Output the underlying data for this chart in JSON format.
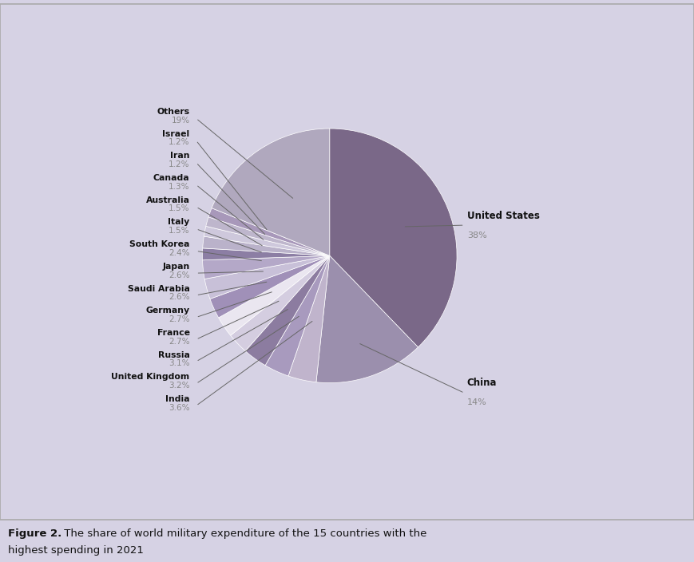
{
  "countries": [
    "United States",
    "China",
    "India",
    "United Kingdom",
    "Russia",
    "France",
    "Germany",
    "Saudi Arabia",
    "Japan",
    "South Korea",
    "Italy",
    "Australia",
    "Canada",
    "Iran",
    "Israel",
    "Others"
  ],
  "percentages": [
    38,
    14,
    3.6,
    3.2,
    3.1,
    2.7,
    2.7,
    2.6,
    2.6,
    2.4,
    1.5,
    1.5,
    1.3,
    1.2,
    1.2,
    19
  ],
  "colors": [
    "#7A6888",
    "#9B8FAD",
    "#C0B4CC",
    "#A89ABE",
    "#8C7CA0",
    "#D4CDE0",
    "#EAE6F0",
    "#A090B8",
    "#C8C0D8",
    "#B4A8C8",
    "#8C7EA4",
    "#BAB2CA",
    "#CEC8DC",
    "#BEB6CC",
    "#A898BA",
    "#B0A8BE"
  ],
  "background_color": "#D6D2E4",
  "label_color_name": "#111111",
  "label_color_pct": "#888888",
  "line_color": "#666666",
  "caption_bold": "Figure 2.",
  "caption_rest_line1": " The share of world military expenditure of the 15 countries with the",
  "caption_line2": "highest spending in 2021",
  "left_labels": [
    {
      "name": "India",
      "pct": "3.6%"
    },
    {
      "name": "United Kingdom",
      "pct": "3.2%"
    },
    {
      "name": "Russia",
      "pct": "3.1%"
    },
    {
      "name": "France",
      "pct": "2.7%"
    },
    {
      "name": "Germany",
      "pct": "2.7%"
    },
    {
      "name": "Saudi Arabia",
      "pct": "2.6%"
    },
    {
      "name": "Japan",
      "pct": "2.6%"
    },
    {
      "name": "South Korea",
      "pct": "2.4%"
    },
    {
      "name": "Italy",
      "pct": "1.5%"
    },
    {
      "name": "Australia",
      "pct": "1.5%"
    },
    {
      "name": "Canada",
      "pct": "1.3%"
    },
    {
      "name": "Iran",
      "pct": "1.2%"
    },
    {
      "name": "Israel",
      "pct": "1.2%"
    },
    {
      "name": "Others",
      "pct": "19%"
    }
  ],
  "right_labels": [
    {
      "name": "United States",
      "pct": "38%"
    },
    {
      "name": "China",
      "pct": "14%"
    }
  ]
}
